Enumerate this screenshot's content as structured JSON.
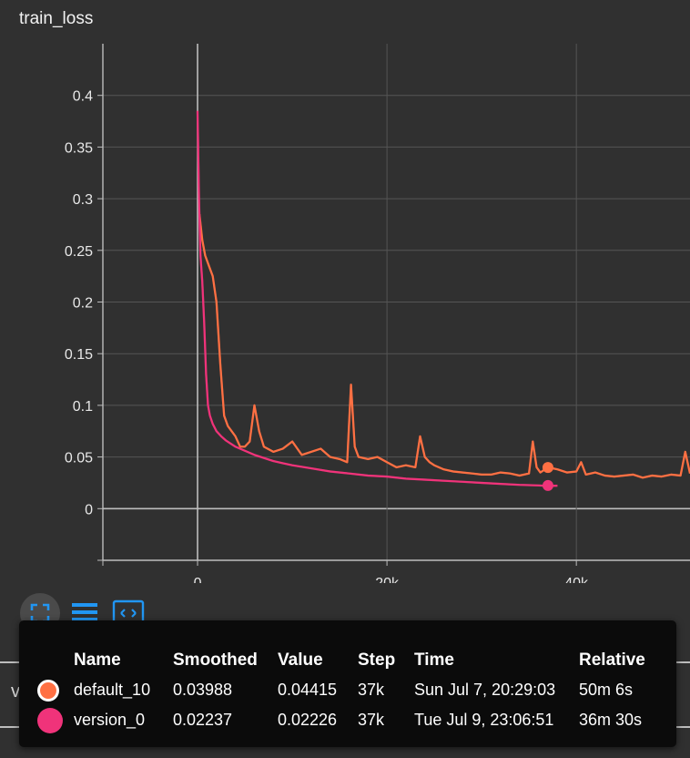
{
  "card": {
    "title": "train_loss"
  },
  "chart_data": {
    "type": "line",
    "title": "train_loss",
    "xlabel": "",
    "ylabel": "",
    "xlim": [
      -10000,
      52000
    ],
    "ylim": [
      -0.05,
      0.45
    ],
    "x_ticks": [
      0,
      20000,
      40000
    ],
    "x_tick_labels": [
      "0",
      "20k",
      "40k"
    ],
    "y_ticks": [
      0,
      0.05,
      0.1,
      0.15,
      0.2,
      0.25,
      0.3,
      0.35,
      0.4
    ],
    "y_tick_labels": [
      "0",
      "0.05",
      "0.1",
      "0.15",
      "0.2",
      "0.25",
      "0.3",
      "0.35",
      "0.4"
    ],
    "grid": true,
    "series": [
      {
        "name": "default_10",
        "color": "#ff7043",
        "x": [
          200,
          500,
          800,
          1200,
          1600,
          2000,
          2400,
          2800,
          3200,
          3600,
          4000,
          4500,
          5000,
          5500,
          6000,
          6500,
          7000,
          8000,
          9000,
          10000,
          11000,
          12000,
          13000,
          14000,
          15000,
          15800,
          16200,
          16600,
          17000,
          18000,
          19000,
          20000,
          21000,
          22000,
          23000,
          23500,
          24000,
          24500,
          25000,
          26000,
          27000,
          28000,
          29000,
          30000,
          31000,
          32000,
          33000,
          34000,
          35000,
          35400,
          35800,
          36200,
          37000,
          38000,
          39000,
          40000,
          40500,
          41000,
          42000,
          43000,
          44000,
          45000,
          46000,
          47000,
          48000,
          49000,
          50000,
          51000,
          51500,
          52000
        ],
        "values": [
          0.285,
          0.26,
          0.245,
          0.235,
          0.225,
          0.2,
          0.14,
          0.09,
          0.08,
          0.075,
          0.07,
          0.06,
          0.06,
          0.065,
          0.1,
          0.075,
          0.06,
          0.055,
          0.058,
          0.065,
          0.052,
          0.055,
          0.058,
          0.05,
          0.048,
          0.045,
          0.12,
          0.06,
          0.05,
          0.048,
          0.05,
          0.045,
          0.04,
          0.042,
          0.04,
          0.07,
          0.05,
          0.045,
          0.042,
          0.038,
          0.036,
          0.035,
          0.034,
          0.033,
          0.033,
          0.035,
          0.034,
          0.032,
          0.034,
          0.065,
          0.04,
          0.035,
          0.04,
          0.038,
          0.035,
          0.036,
          0.045,
          0.033,
          0.035,
          0.032,
          0.031,
          0.032,
          0.033,
          0.03,
          0.032,
          0.031,
          0.033,
          0.032,
          0.055,
          0.034
        ],
        "marker": {
          "x": 37000,
          "y": 0.03988
        }
      },
      {
        "name": "version_0",
        "color": "#f0337a",
        "x": [
          0,
          150,
          300,
          500,
          700,
          900,
          1100,
          1300,
          1600,
          2000,
          2500,
          3000,
          3500,
          4000,
          5000,
          6000,
          7000,
          8000,
          9000,
          10000,
          12000,
          14000,
          16000,
          18000,
          20000,
          22000,
          24000,
          26000,
          28000,
          30000,
          32000,
          34000,
          36000,
          37000,
          38000
        ],
        "values": [
          0.385,
          0.3,
          0.245,
          0.22,
          0.18,
          0.13,
          0.1,
          0.09,
          0.082,
          0.075,
          0.07,
          0.066,
          0.063,
          0.06,
          0.056,
          0.052,
          0.049,
          0.046,
          0.044,
          0.042,
          0.039,
          0.036,
          0.034,
          0.032,
          0.031,
          0.029,
          0.028,
          0.027,
          0.026,
          0.025,
          0.024,
          0.023,
          0.0225,
          0.022,
          0.0222
        ],
        "marker": {
          "x": 37000,
          "y": 0.02237
        }
      }
    ]
  },
  "tooltip": {
    "headers": {
      "name": "Name",
      "smoothed": "Smoothed",
      "value": "Value",
      "step": "Step",
      "time": "Time",
      "relative": "Relative"
    },
    "rows": [
      {
        "color": "#ff7043",
        "name": "default_10",
        "smoothed": "0.03988",
        "value": "0.04415",
        "step": "37k",
        "time": "Sun Jul 7, 20:29:03",
        "relative": "50m 6s"
      },
      {
        "color": "#f0337a",
        "name": "version_0",
        "smoothed": "0.02237",
        "value": "0.02226",
        "step": "37k",
        "time": "Tue Jul 9, 23:06:51",
        "relative": "36m 30s"
      }
    ]
  },
  "background": {
    "next_card_label": "val_loss"
  },
  "toolbar": {
    "buttons": [
      {
        "icon": "fit-to-data-icon",
        "active": true
      },
      {
        "icon": "toggle-log-scale-icon",
        "active": false
      },
      {
        "icon": "fullscreen-icon",
        "active": false
      }
    ]
  },
  "colors": {
    "accent": "#2196f3",
    "background": "#303030"
  }
}
